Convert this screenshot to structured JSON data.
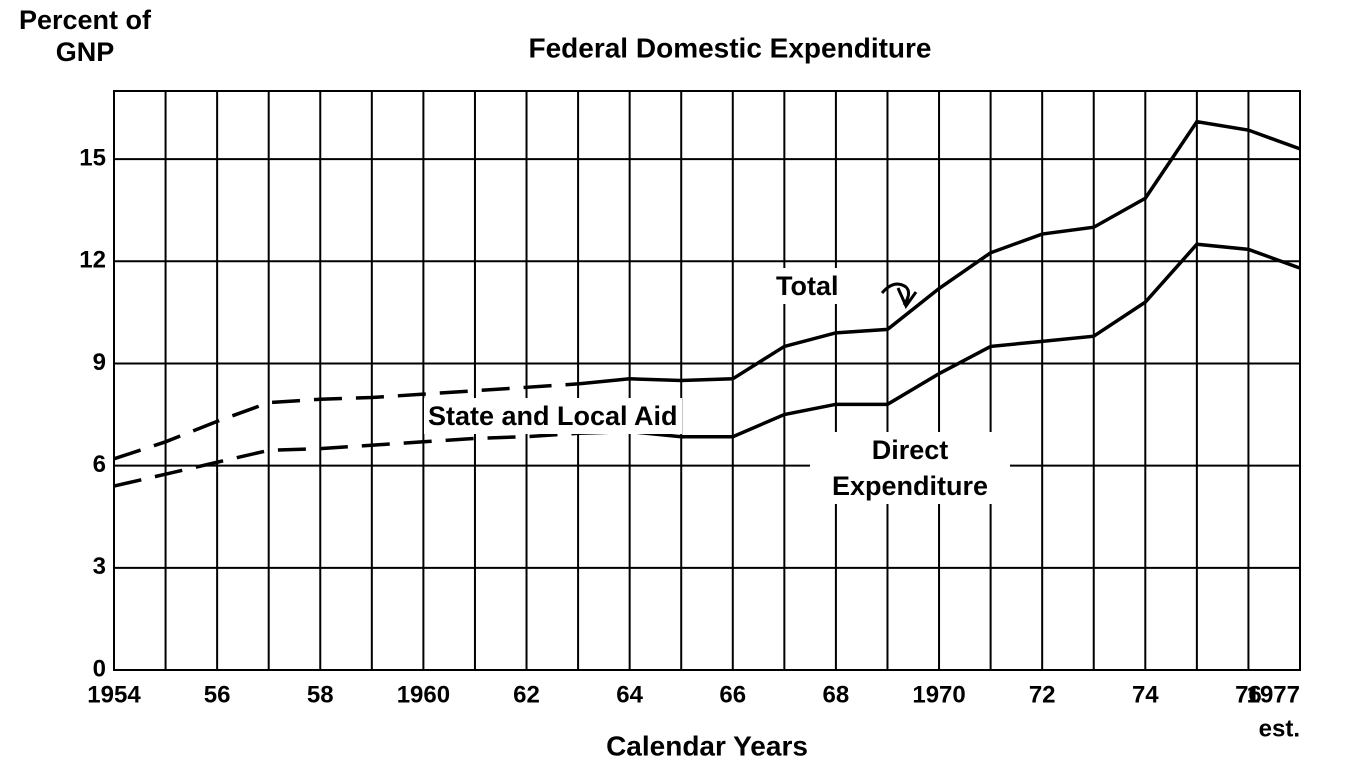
{
  "chart_data": {
    "type": "line",
    "title": "Federal Domestic Expenditure",
    "ylabel": "Percent of GNP",
    "xlabel": "Calendar Years",
    "x": [
      1954,
      1955,
      1956,
      1957,
      1958,
      1959,
      1960,
      1961,
      1962,
      1963,
      1964,
      1965,
      1966,
      1967,
      1968,
      1969,
      1970,
      1971,
      1972,
      1973,
      1974,
      1975,
      1976,
      1977
    ],
    "series": [
      {
        "name": "Total",
        "color": "#000000",
        "values": [
          6.2,
          6.7,
          7.3,
          7.85,
          7.95,
          8.0,
          8.1,
          8.2,
          8.3,
          8.4,
          8.55,
          8.5,
          8.55,
          9.5,
          9.9,
          10.0,
          11.2,
          12.25,
          12.8,
          13.0,
          13.85,
          16.1,
          15.85,
          15.3
        ]
      },
      {
        "name": "Direct Expenditure",
        "color": "#000000",
        "values": [
          5.4,
          5.75,
          6.1,
          6.45,
          6.5,
          6.6,
          6.7,
          6.8,
          6.85,
          6.95,
          7.0,
          6.85,
          6.85,
          7.5,
          7.8,
          7.8,
          8.7,
          9.5,
          9.65,
          9.8,
          10.8,
          12.5,
          12.35,
          11.8
        ]
      }
    ],
    "annotations": [
      "State and Local Aid",
      "est."
    ],
    "dashed_until_x": 1963,
    "xlim": [
      1954,
      1977
    ],
    "xticks": [
      {
        "value": 1954,
        "label": "1954"
      },
      {
        "value": 1956,
        "label": "56"
      },
      {
        "value": 1958,
        "label": "58"
      },
      {
        "value": 1960,
        "label": "1960"
      },
      {
        "value": 1962,
        "label": "62"
      },
      {
        "value": 1964,
        "label": "64"
      },
      {
        "value": 1966,
        "label": "66"
      },
      {
        "value": 1968,
        "label": "68"
      },
      {
        "value": 1970,
        "label": "1970"
      },
      {
        "value": 1972,
        "label": "72"
      },
      {
        "value": 1974,
        "label": "74"
      },
      {
        "value": 1976,
        "label": "76"
      },
      {
        "value": 1977,
        "label": "1977"
      }
    ],
    "ylim": [
      0,
      17
    ],
    "yticks": [
      0,
      3,
      6,
      9,
      12,
      15
    ],
    "grid": true
  }
}
